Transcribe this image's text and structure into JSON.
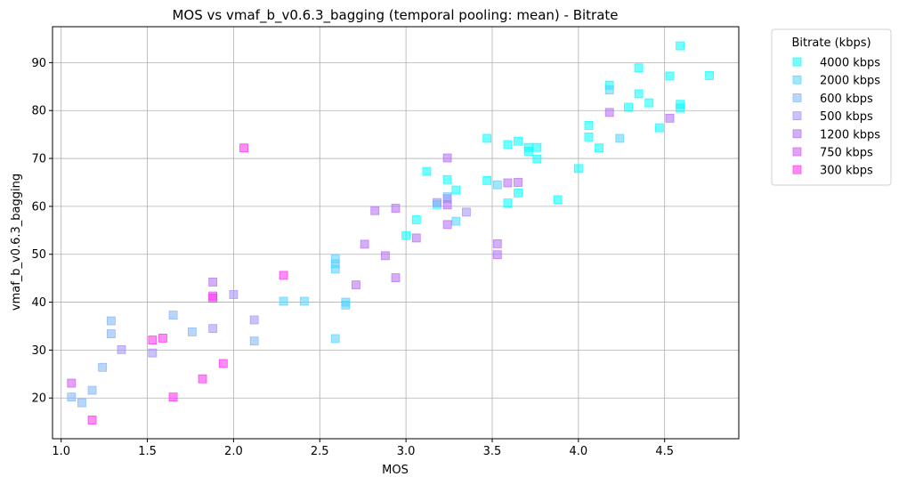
{
  "chart_data": {
    "type": "scatter",
    "title": "MOS vs vmaf_b_v0.6.3_bagging (temporal pooling: mean) - Bitrate",
    "xlabel": "MOS",
    "ylabel": "vmaf_b_v0.6.3_bagging",
    "xlim": [
      0.95,
      4.93
    ],
    "ylim": [
      11.5,
      97.5
    ],
    "xticks": [
      1.0,
      1.5,
      2.0,
      2.5,
      3.0,
      3.5,
      4.0,
      4.5
    ],
    "xtick_labels": [
      "1.0",
      "1.5",
      "2.0",
      "2.5",
      "3.0",
      "3.5",
      "4.0",
      "4.5"
    ],
    "yticks": [
      20,
      30,
      40,
      50,
      60,
      70,
      80,
      90
    ],
    "ytick_labels": [
      "20",
      "30",
      "40",
      "50",
      "60",
      "70",
      "80",
      "90"
    ],
    "grid": true,
    "marker": "square",
    "legend": {
      "title": "Bitrate (kbps)",
      "placement": "outside-top-right"
    },
    "series": [
      {
        "name": "4000 kbps",
        "color": "#00ffff",
        "points": [
          [
            4.59,
            93.5
          ],
          [
            4.35,
            88.9
          ],
          [
            4.53,
            87.2
          ],
          [
            4.76,
            87.3
          ],
          [
            4.18,
            85.3
          ],
          [
            4.35,
            83.5
          ],
          [
            4.41,
            81.6
          ],
          [
            4.59,
            81.3
          ],
          [
            4.59,
            80.5
          ],
          [
            4.29,
            80.7
          ],
          [
            4.06,
            76.9
          ],
          [
            4.47,
            76.4
          ],
          [
            4.06,
            74.5
          ],
          [
            3.47,
            74.2
          ],
          [
            3.65,
            73.6
          ],
          [
            3.59,
            72.9
          ],
          [
            3.71,
            72.3
          ],
          [
            3.76,
            72.3
          ],
          [
            3.71,
            71.5
          ],
          [
            4.12,
            72.2
          ],
          [
            3.76,
            69.9
          ],
          [
            4.0,
            67.9
          ],
          [
            3.12,
            67.3
          ],
          [
            3.47,
            65.4
          ],
          [
            3.24,
            65.6
          ],
          [
            3.29,
            63.4
          ],
          [
            3.65,
            62.8
          ],
          [
            3.88,
            61.4
          ],
          [
            3.59,
            60.7
          ],
          [
            3.18,
            60.4
          ],
          [
            3.06,
            57.2
          ],
          [
            3.0,
            53.9
          ]
        ]
      },
      {
        "name": "2000 kbps",
        "color": "#54d1ff",
        "points": [
          [
            4.18,
            84.3
          ],
          [
            4.24,
            74.2
          ],
          [
            3.53,
            64.5
          ],
          [
            3.24,
            62.0
          ],
          [
            3.29,
            56.9
          ],
          [
            2.59,
            49.0
          ],
          [
            2.59,
            48.0
          ],
          [
            2.59,
            46.9
          ],
          [
            2.65,
            40.0
          ],
          [
            2.65,
            39.4
          ],
          [
            2.29,
            40.2
          ],
          [
            2.41,
            40.2
          ],
          [
            2.59,
            32.4
          ]
        ]
      },
      {
        "name": "600 kbps",
        "color": "#7fb3fa",
        "points": [
          [
            1.29,
            36.1
          ],
          [
            1.65,
            37.3
          ],
          [
            1.29,
            33.4
          ],
          [
            1.76,
            33.8
          ],
          [
            1.24,
            26.4
          ],
          [
            1.06,
            20.2
          ],
          [
            1.18,
            21.6
          ],
          [
            1.12,
            19.0
          ],
          [
            2.12,
            31.9
          ]
        ]
      },
      {
        "name": "500 kbps",
        "color": "#a28efa",
        "points": [
          [
            3.35,
            58.8
          ],
          [
            3.24,
            61.6
          ],
          [
            3.18,
            60.8
          ],
          [
            2.0,
            41.6
          ],
          [
            2.12,
            36.3
          ],
          [
            1.88,
            34.5
          ],
          [
            1.53,
            29.4
          ],
          [
            1.35,
            30.1
          ]
        ]
      },
      {
        "name": "1200 kbps",
        "color": "#b36cf5",
        "points": [
          [
            4.18,
            79.6
          ],
          [
            4.53,
            78.4
          ],
          [
            3.24,
            70.1
          ],
          [
            3.59,
            64.9
          ],
          [
            3.65,
            65.0
          ],
          [
            2.94,
            59.6
          ],
          [
            2.82,
            59.1
          ],
          [
            3.24,
            60.3
          ],
          [
            3.24,
            56.2
          ],
          [
            3.06,
            53.4
          ],
          [
            3.53,
            52.2
          ],
          [
            2.76,
            52.1
          ],
          [
            3.53,
            49.9
          ],
          [
            2.88,
            49.7
          ],
          [
            2.94,
            45.1
          ],
          [
            2.71,
            43.6
          ],
          [
            1.88,
            44.2
          ]
        ]
      },
      {
        "name": "750 kbps",
        "color": "#cc56f0",
        "points": [
          [
            1.88,
            41.3
          ],
          [
            1.06,
            23.1
          ]
        ]
      },
      {
        "name": "300 kbps",
        "color": "#ff2cf0",
        "points": [
          [
            2.06,
            72.2
          ],
          [
            2.29,
            45.6
          ],
          [
            1.88,
            40.9
          ],
          [
            1.59,
            32.5
          ],
          [
            1.53,
            32.1
          ],
          [
            1.94,
            27.2
          ],
          [
            1.82,
            24.0
          ],
          [
            1.65,
            20.2
          ],
          [
            1.18,
            15.4
          ]
        ]
      }
    ]
  }
}
